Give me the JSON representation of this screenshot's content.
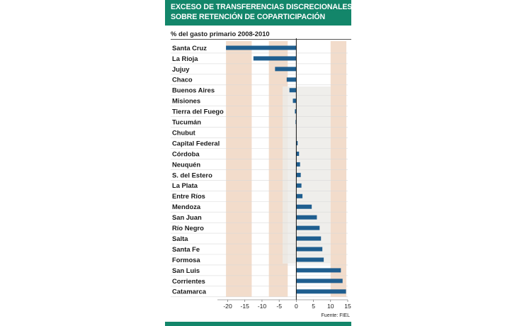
{
  "header": {
    "title_line1": "EXCESO DE TRANSFERENCIAS DISCRECIONALES",
    "title_line2": "SOBRE RETENCIÓN DE COPARTICIPACIÓN"
  },
  "source": "Fuente: FIEL",
  "colors": {
    "header": "#13866a",
    "bar": "#1f5e8f",
    "band": "#f2dccb"
  },
  "chart_data": {
    "type": "bar",
    "orientation": "horizontal",
    "subtitle": "% del gasto primario 2008-2010",
    "categories": [
      "Santa Cruz",
      "La Rioja",
      "Jujuy",
      "Chaco",
      "Buenos Aires",
      "Misiones",
      "Tierra del Fuego",
      "Tucumán",
      "Chubut",
      "Capital Federal",
      "Córdoba",
      "Neuquén",
      "S. del Estero",
      "La Plata",
      "Entre Ríos",
      "Mendoza",
      "San Juan",
      "Río Negro",
      "Salta",
      "Santa Fe",
      "Formosa",
      "San Luis",
      "Corrientes",
      "Catamarca"
    ],
    "values": [
      -20.5,
      -12.5,
      -6.2,
      -2.8,
      -2.0,
      -1.0,
      -0.4,
      -0.2,
      0,
      0.4,
      0.8,
      1.1,
      1.3,
      1.5,
      1.8,
      4.5,
      6.0,
      6.8,
      7.2,
      7.6,
      8.0,
      13.0,
      13.5,
      14.5
    ],
    "xlim": [
      -23,
      15
    ],
    "xticks": [
      -20,
      -15,
      -10,
      -5,
      0,
      5,
      10,
      15
    ],
    "grid": false
  }
}
